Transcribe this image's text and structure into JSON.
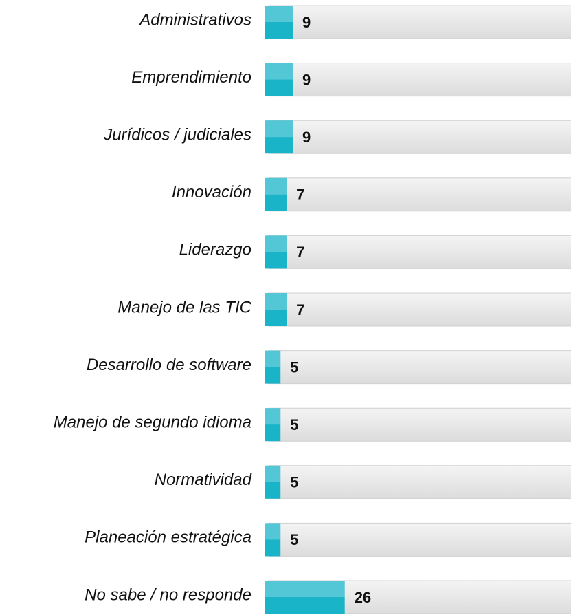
{
  "chart_data": {
    "type": "bar",
    "orientation": "horizontal",
    "categories": [
      "Administrativos",
      "Emprendimiento",
      "Jurídicos / judiciales",
      "Innovación",
      "Liderazgo",
      "Manejo de las TIC",
      "Desarrollo de software",
      "Manejo de segundo idioma",
      "Normatividad",
      "Planeación estratégica",
      "No sabe / no responde"
    ],
    "values": [
      9,
      9,
      9,
      7,
      7,
      7,
      5,
      5,
      5,
      5,
      26
    ],
    "color": "#1ab4c8",
    "xlim": [
      0,
      100
    ]
  }
}
